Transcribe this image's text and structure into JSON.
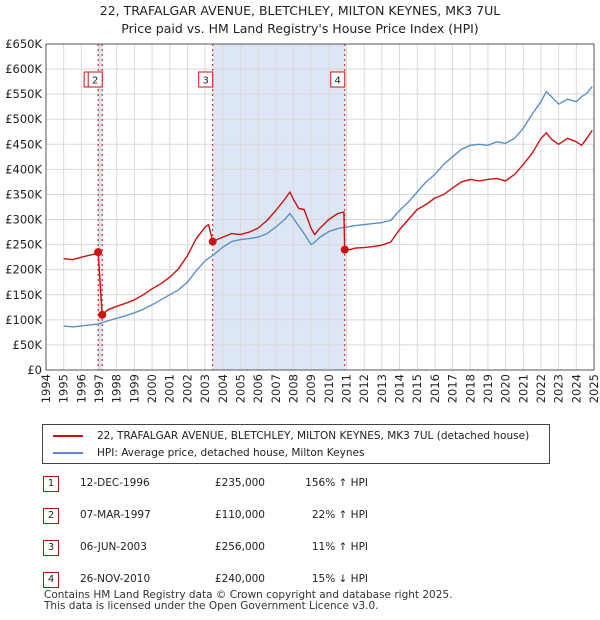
{
  "title_line1": "22, TRAFALGAR AVENUE, BLETCHLEY, MILTON KEYNES, MK3 7UL",
  "title_line2": "Price paid vs. HM Land Registry's House Price Index (HPI)",
  "colors": {
    "property": "#cc1111",
    "hpi": "#5b8fcb",
    "shade": "#dde6f4",
    "grid": "#d9d9d9",
    "vline": "#cc1111"
  },
  "chart_data": {
    "type": "line",
    "title": "Price paid vs. HM Land Registry's House Price Index (HPI)",
    "xlabel": "",
    "ylabel": "",
    "xlim": [
      1994,
      2025
    ],
    "ylim": [
      0,
      650000
    ],
    "y_ticks": [
      {
        "value": 0,
        "label": "£0"
      },
      {
        "value": 50000,
        "label": "£50K"
      },
      {
        "value": 100000,
        "label": "£100K"
      },
      {
        "value": 150000,
        "label": "£150K"
      },
      {
        "value": 200000,
        "label": "£200K"
      },
      {
        "value": 250000,
        "label": "£250K"
      },
      {
        "value": 300000,
        "label": "£300K"
      },
      {
        "value": 350000,
        "label": "£350K"
      },
      {
        "value": 400000,
        "label": "£400K"
      },
      {
        "value": 450000,
        "label": "£450K"
      },
      {
        "value": 500000,
        "label": "£500K"
      },
      {
        "value": 550000,
        "label": "£550K"
      },
      {
        "value": 600000,
        "label": "£600K"
      },
      {
        "value": 650000,
        "label": "£650K"
      }
    ],
    "x_ticks": [
      "1994",
      "1995",
      "1996",
      "1997",
      "1998",
      "1999",
      "2000",
      "2001",
      "2002",
      "2003",
      "2004",
      "2005",
      "2006",
      "2007",
      "2008",
      "2009",
      "2010",
      "2011",
      "2012",
      "2013",
      "2014",
      "2015",
      "2016",
      "2017",
      "2018",
      "2019",
      "2020",
      "2021",
      "2022",
      "2023",
      "2024",
      "2025"
    ],
    "shaded_ranges": [
      [
        1996.95,
        1997.18
      ],
      [
        2003.43,
        2010.9
      ]
    ],
    "event_lines": [
      {
        "label": "1",
        "x": 1996.95
      },
      {
        "label": "2",
        "x": 1997.18
      },
      {
        "label": "3",
        "x": 2003.43
      },
      {
        "label": "4",
        "x": 2010.9
      }
    ],
    "sales": [
      {
        "x": 1996.95,
        "y": 235000
      },
      {
        "x": 1997.18,
        "y": 110000
      },
      {
        "x": 2003.43,
        "y": 256000
      },
      {
        "x": 2010.9,
        "y": 240000
      }
    ],
    "series": [
      {
        "name": "22, TRAFALGAR AVENUE, BLETCHLEY, MILTON KEYNES, MK3 7UL (detached house)",
        "color": "#cc1111",
        "x": [
          1995.0,
          1995.5,
          1996.0,
          1996.5,
          1996.9,
          1996.95,
          1997.18,
          1997.5,
          1998.0,
          1998.5,
          1999.0,
          1999.5,
          2000.0,
          2000.5,
          2001.0,
          2001.5,
          2002.0,
          2002.5,
          2003.0,
          2003.2,
          2003.43,
          2003.8,
          2004.5,
          2005.0,
          2005.5,
          2006.0,
          2006.5,
          2007.0,
          2007.5,
          2007.8,
          2008.0,
          2008.3,
          2008.6,
          2009.0,
          2009.2,
          2009.5,
          2010.0,
          2010.5,
          2010.85,
          2010.9,
          2011.2,
          2011.5,
          2012.0,
          2012.5,
          2013.0,
          2013.5,
          2014.0,
          2014.5,
          2015.0,
          2015.5,
          2016.0,
          2016.5,
          2017.0,
          2017.5,
          2018.0,
          2018.5,
          2019.0,
          2019.5,
          2020.0,
          2020.5,
          2021.0,
          2021.5,
          2022.0,
          2022.3,
          2022.6,
          2023.0,
          2023.5,
          2024.0,
          2024.3,
          2024.6,
          2024.9
        ],
        "y": [
          222000,
          220000,
          225000,
          229000,
          232000,
          235000,
          110000,
          120000,
          127000,
          133000,
          140000,
          150000,
          162000,
          172000,
          185000,
          202000,
          228000,
          262000,
          285000,
          290000,
          256000,
          262000,
          272000,
          270000,
          275000,
          283000,
          298000,
          318000,
          340000,
          355000,
          340000,
          322000,
          320000,
          282000,
          270000,
          283000,
          300000,
          312000,
          315000,
          240000,
          240000,
          243000,
          244000,
          246000,
          249000,
          255000,
          280000,
          300000,
          320000,
          330000,
          343000,
          350000,
          363000,
          375000,
          380000,
          377000,
          380000,
          382000,
          377000,
          390000,
          410000,
          432000,
          462000,
          473000,
          460000,
          450000,
          462000,
          455000,
          448000,
          462000,
          478000
        ]
      },
      {
        "name": "HPI: Average price, detached house, Milton Keynes",
        "color": "#5b8fcb",
        "x": [
          1995.0,
          1995.5,
          1996.0,
          1996.5,
          1997.0,
          1997.5,
          1998.0,
          1998.5,
          1999.0,
          1999.5,
          2000.0,
          2000.5,
          2001.0,
          2001.5,
          2002.0,
          2002.5,
          2003.0,
          2003.5,
          2004.0,
          2004.5,
          2005.0,
          2005.5,
          2006.0,
          2006.5,
          2007.0,
          2007.5,
          2007.8,
          2008.0,
          2008.3,
          2008.6,
          2009.0,
          2009.2,
          2009.5,
          2010.0,
          2010.5,
          2011.0,
          2011.5,
          2012.0,
          2012.5,
          2013.0,
          2013.5,
          2014.0,
          2014.5,
          2015.0,
          2015.5,
          2016.0,
          2016.5,
          2017.0,
          2017.5,
          2018.0,
          2018.5,
          2019.0,
          2019.5,
          2020.0,
          2020.5,
          2021.0,
          2021.5,
          2022.0,
          2022.3,
          2022.6,
          2023.0,
          2023.5,
          2024.0,
          2024.3,
          2024.6,
          2024.9
        ],
        "y": [
          88000,
          86000,
          88000,
          90000,
          92000,
          98000,
          103000,
          108000,
          114000,
          121000,
          130000,
          140000,
          150000,
          160000,
          175000,
          198000,
          218000,
          230000,
          245000,
          256000,
          260000,
          262000,
          265000,
          272000,
          285000,
          300000,
          312000,
          302000,
          287000,
          272000,
          250000,
          255000,
          265000,
          276000,
          282000,
          285000,
          288000,
          290000,
          292000,
          294000,
          298000,
          318000,
          335000,
          355000,
          375000,
          390000,
          410000,
          425000,
          440000,
          448000,
          450000,
          448000,
          455000,
          452000,
          462000,
          482000,
          510000,
          535000,
          555000,
          545000,
          530000,
          540000,
          535000,
          545000,
          552000,
          565000
        ]
      }
    ]
  },
  "legend": {
    "property_label": "22, TRAFALGAR AVENUE, BLETCHLEY, MILTON KEYNES, MK3 7UL (detached house)",
    "hpi_label": "HPI: Average price, detached house, Milton Keynes"
  },
  "transactions": [
    {
      "num": "1",
      "date": "12-DEC-1996",
      "price": "£235,000",
      "hpi": "156% ↑ HPI"
    },
    {
      "num": "2",
      "date": "07-MAR-1997",
      "price": "£110,000",
      "hpi": "22% ↑ HPI"
    },
    {
      "num": "3",
      "date": "06-JUN-2003",
      "price": "£256,000",
      "hpi": "11% ↑ HPI"
    },
    {
      "num": "4",
      "date": "26-NOV-2010",
      "price": "£240,000",
      "hpi": "15% ↓ HPI"
    }
  ],
  "footer": {
    "line1": "Contains HM Land Registry data © Crown copyright and database right 2025.",
    "line2": "This data is licensed under the Open Government Licence v3.0."
  }
}
